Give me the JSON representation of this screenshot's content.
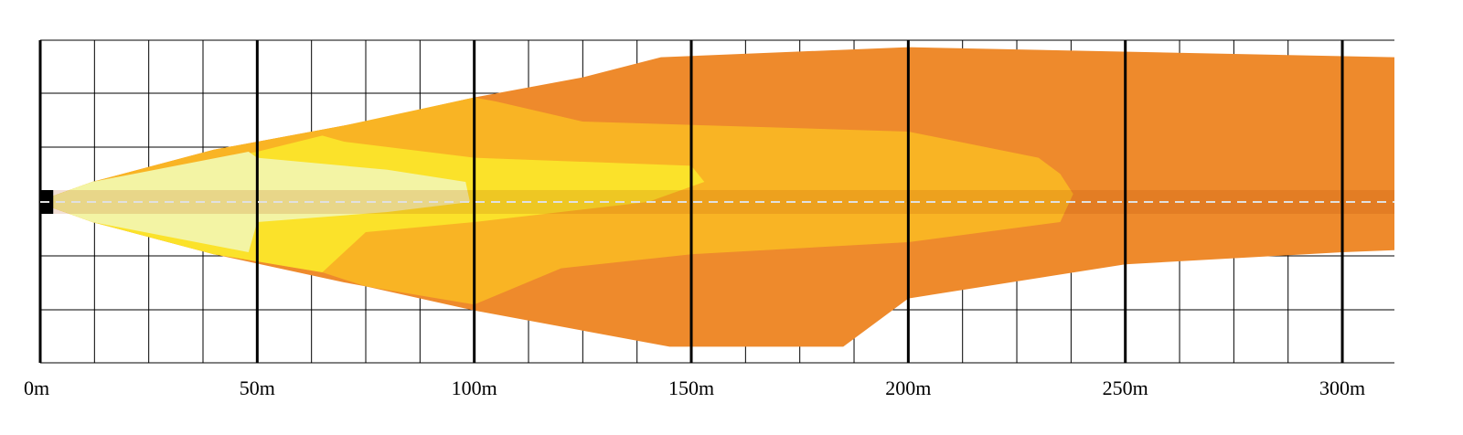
{
  "chart_data": {
    "type": "area",
    "title": "",
    "xlabel": "",
    "ylabel": "",
    "x_unit": "m",
    "xlim": [
      0,
      312
    ],
    "x_ticks": [
      {
        "value": 0,
        "label": "0m"
      },
      {
        "value": 50,
        "label": "50m"
      },
      {
        "value": 100,
        "label": "100m"
      },
      {
        "value": 150,
        "label": "150m"
      },
      {
        "value": 200,
        "label": "200m"
      },
      {
        "value": 250,
        "label": "250m"
      },
      {
        "value": 300,
        "label": "300m"
      }
    ],
    "grid": true,
    "minor_grid_step": 12.5,
    "centerline": {
      "color": "#e0e0e0",
      "style": "dashed"
    },
    "zones": [
      {
        "color": "#EE8A2C",
        "reach": 312,
        "outline": [
          [
            3,
            3
          ],
          [
            12,
            10
          ],
          [
            40,
            26
          ],
          [
            70,
            38
          ],
          [
            75,
            40
          ],
          [
            100,
            52
          ],
          [
            125,
            62
          ],
          [
            143,
            72
          ],
          [
            200,
            77
          ],
          [
            312,
            72
          ],
          [
            312,
            -24
          ],
          [
            300,
            -25
          ],
          [
            250,
            -31
          ],
          [
            200,
            -48
          ],
          [
            185,
            -72
          ],
          [
            145,
            -72
          ],
          [
            100,
            -54
          ],
          [
            75,
            -42
          ],
          [
            70,
            -40
          ],
          [
            40,
            -26
          ],
          [
            12,
            -10
          ],
          [
            3,
            -3
          ]
        ]
      },
      {
        "color": "#F9B424",
        "reach": 238,
        "outline": [
          [
            3,
            3
          ],
          [
            12,
            10
          ],
          [
            40,
            26
          ],
          [
            70,
            38
          ],
          [
            100,
            52
          ],
          [
            105,
            50
          ],
          [
            125,
            40
          ],
          [
            200,
            35
          ],
          [
            230,
            22
          ],
          [
            235,
            14
          ],
          [
            238,
            4
          ],
          [
            235,
            -10
          ],
          [
            200,
            -20
          ],
          [
            150,
            -26
          ],
          [
            120,
            -33
          ],
          [
            100,
            -51
          ],
          [
            75,
            -42
          ],
          [
            65,
            -35
          ],
          [
            40,
            -26
          ],
          [
            12,
            -10
          ],
          [
            3,
            -3
          ]
        ]
      },
      {
        "color": "#FBE22A",
        "reach": 153,
        "outline": [
          [
            3,
            3
          ],
          [
            12,
            10
          ],
          [
            50,
            25
          ],
          [
            65,
            33
          ],
          [
            70,
            30
          ],
          [
            100,
            22
          ],
          [
            150,
            18
          ],
          [
            153,
            10
          ],
          [
            140,
            0
          ],
          [
            100,
            -10
          ],
          [
            75,
            -15
          ],
          [
            65,
            -35
          ],
          [
            40,
            -26
          ],
          [
            12,
            -10
          ],
          [
            3,
            -3
          ]
        ]
      },
      {
        "color": "#F3F4A4",
        "reach": 99,
        "outline": [
          [
            3,
            3
          ],
          [
            12,
            10
          ],
          [
            48,
            25
          ],
          [
            50,
            22
          ],
          [
            80,
            16
          ],
          [
            98,
            10
          ],
          [
            99,
            0
          ],
          [
            80,
            -5
          ],
          [
            50,
            -10
          ],
          [
            48,
            -25
          ],
          [
            12,
            -10
          ],
          [
            3,
            -3
          ]
        ]
      }
    ]
  }
}
